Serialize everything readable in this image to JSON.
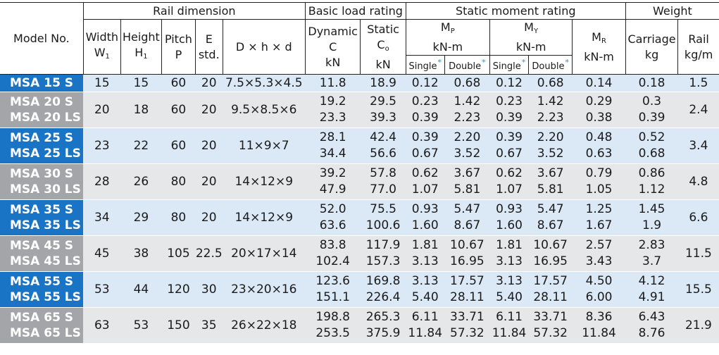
{
  "header": {
    "model_no": "Model No.",
    "rail_dimension": "Rail dimension",
    "basic_load_rating": "Basic load rating",
    "static_moment_rating": "Static moment rating",
    "weight": "Weight",
    "width": "Width",
    "width_sym": "W",
    "width_sub": "1",
    "height": "Height",
    "height_sym": "H",
    "height_sub": "1",
    "pitch": "Pitch",
    "pitch_sym": "P",
    "e": "E",
    "e_std": "std.",
    "dhd": "D × h × d",
    "dynamic": "Dynamic",
    "dynamic_sym": "C",
    "dynamic_unit": "kN",
    "static": "Static",
    "static_sym": "C",
    "static_sub": "o",
    "static_unit": "kN",
    "mp": "M",
    "mp_sub": "P",
    "mp_unit": "kN-m",
    "my": "M",
    "my_sub": "Y",
    "my_unit": "kN-m",
    "mr": "M",
    "mr_sub": "R",
    "mr_unit": "kN-m",
    "single": "Single",
    "double": "Double",
    "star": "*",
    "carriage": "Carriage",
    "carriage_unit": "kg",
    "rail": "Rail",
    "rail_unit": "kg/m"
  },
  "rows": [
    {
      "models": [
        "MSA 15 S"
      ],
      "w": "15",
      "h": "15",
      "p": "60",
      "e": "20",
      "dhd": "7.5×5.3×4.5",
      "dyn": [
        "11.8"
      ],
      "sta": [
        "18.9"
      ],
      "mp_s": [
        "0.12"
      ],
      "mp_d": [
        "0.68"
      ],
      "my_s": [
        "0.12"
      ],
      "my_d": [
        "0.68"
      ],
      "mr": [
        "0.14"
      ],
      "carriage": [
        "0.18"
      ],
      "rail": "1.5"
    },
    {
      "models": [
        "MSA 20 S",
        "MSA 20 LS"
      ],
      "w": "20",
      "h": "18",
      "p": "60",
      "e": "20",
      "dhd": "9.5×8.5×6",
      "dyn": [
        "19.2",
        "23.3"
      ],
      "sta": [
        "29.5",
        "39.3"
      ],
      "mp_s": [
        "0.23",
        "0.39"
      ],
      "mp_d": [
        "1.42",
        "2.23"
      ],
      "my_s": [
        "0.23",
        "0.39"
      ],
      "my_d": [
        "1.42",
        "2.23"
      ],
      "mr": [
        "0.29",
        "0.38"
      ],
      "carriage": [
        "0.3",
        "0.39"
      ],
      "rail": "2.4"
    },
    {
      "models": [
        "MSA 25 S",
        "MSA 25 LS"
      ],
      "w": "23",
      "h": "22",
      "p": "60",
      "e": "20",
      "dhd": "11×9×7",
      "dyn": [
        "28.1",
        "34.4"
      ],
      "sta": [
        "42.4",
        "56.6"
      ],
      "mp_s": [
        "0.39",
        "0.67"
      ],
      "mp_d": [
        "2.20",
        "3.52"
      ],
      "my_s": [
        "0.39",
        "0.67"
      ],
      "my_d": [
        "2.20",
        "3.52"
      ],
      "mr": [
        "0.48",
        "0.63"
      ],
      "carriage": [
        "0.52",
        "0.68"
      ],
      "rail": "3.4"
    },
    {
      "models": [
        "MSA 30 S",
        "MSA 30 LS"
      ],
      "w": "28",
      "h": "26",
      "p": "80",
      "e": "20",
      "dhd": "14×12×9",
      "dyn": [
        "39.2",
        "47.9"
      ],
      "sta": [
        "57.8",
        "77.0"
      ],
      "mp_s": [
        "0.62",
        "1.07"
      ],
      "mp_d": [
        "3.67",
        "5.81"
      ],
      "my_s": [
        "0.62",
        "1.07"
      ],
      "my_d": [
        "3.67",
        "5.81"
      ],
      "mr": [
        "0.79",
        "1.05"
      ],
      "carriage": [
        "0.86",
        "1.12"
      ],
      "rail": "4.8"
    },
    {
      "models": [
        "MSA 35 S",
        "MSA 35 LS"
      ],
      "w": "34",
      "h": "29",
      "p": "80",
      "e": "20",
      "dhd": "14×12×9",
      "dyn": [
        "52.0",
        "63.6"
      ],
      "sta": [
        "75.5",
        "100.6"
      ],
      "mp_s": [
        "0.93",
        "1.60"
      ],
      "mp_d": [
        "5.47",
        "8.67"
      ],
      "my_s": [
        "0.93",
        "1.60"
      ],
      "my_d": [
        "5.47",
        "8.67"
      ],
      "mr": [
        "1.25",
        "1.67"
      ],
      "carriage": [
        "1.45",
        "1.9"
      ],
      "rail": "6.6"
    },
    {
      "models": [
        "MSA 45 S",
        "MSA 45 LS"
      ],
      "w": "45",
      "h": "38",
      "p": "105",
      "e": "22.5",
      "dhd": "20×17×14",
      "dyn": [
        "83.8",
        "102.4"
      ],
      "sta": [
        "117.9",
        "157.3"
      ],
      "mp_s": [
        "1.81",
        "3.13"
      ],
      "mp_d": [
        "10.67",
        "16.95"
      ],
      "my_s": [
        "1.81",
        "3.13"
      ],
      "my_d": [
        "10.67",
        "16.95"
      ],
      "mr": [
        "2.57",
        "3.43"
      ],
      "carriage": [
        "2.83",
        "3.7"
      ],
      "rail": "11.5"
    },
    {
      "models": [
        "MSA 55 S",
        "MSA 55 LS"
      ],
      "w": "53",
      "h": "44",
      "p": "120",
      "e": "30",
      "dhd": "23×20×16",
      "dyn": [
        "123.6",
        "151.1"
      ],
      "sta": [
        "169.8",
        "226.4"
      ],
      "mp_s": [
        "3.13",
        "5.40"
      ],
      "mp_d": [
        "17.57",
        "28.11"
      ],
      "my_s": [
        "3.13",
        "5.40"
      ],
      "my_d": [
        "17.57",
        "28.11"
      ],
      "mr": [
        "4.50",
        "6.00"
      ],
      "carriage": [
        "4.12",
        "4.91"
      ],
      "rail": "15.5"
    },
    {
      "models": [
        "MSA 65 S",
        "MSA 65 LS"
      ],
      "w": "63",
      "h": "53",
      "p": "150",
      "e": "35",
      "dhd": "26×22×18",
      "dyn": [
        "198.8",
        "253.5"
      ],
      "sta": [
        "265.3",
        "375.9"
      ],
      "mp_s": [
        "6.11",
        "11.84"
      ],
      "mp_d": [
        "33.71",
        "57.32"
      ],
      "my_s": [
        "6.11",
        "11.84"
      ],
      "my_d": [
        "33.71",
        "57.32"
      ],
      "mr": [
        "8.36",
        "11.84"
      ],
      "carriage": [
        "6.43",
        "8.76"
      ],
      "rail": "21.9"
    }
  ],
  "colors": {
    "model_blue": "#1a74c6",
    "model_grey": "#a3a5a8",
    "row_blue": "#dbe8f6",
    "row_grey": "#e6e7e8",
    "star": "#2a8fd6"
  }
}
